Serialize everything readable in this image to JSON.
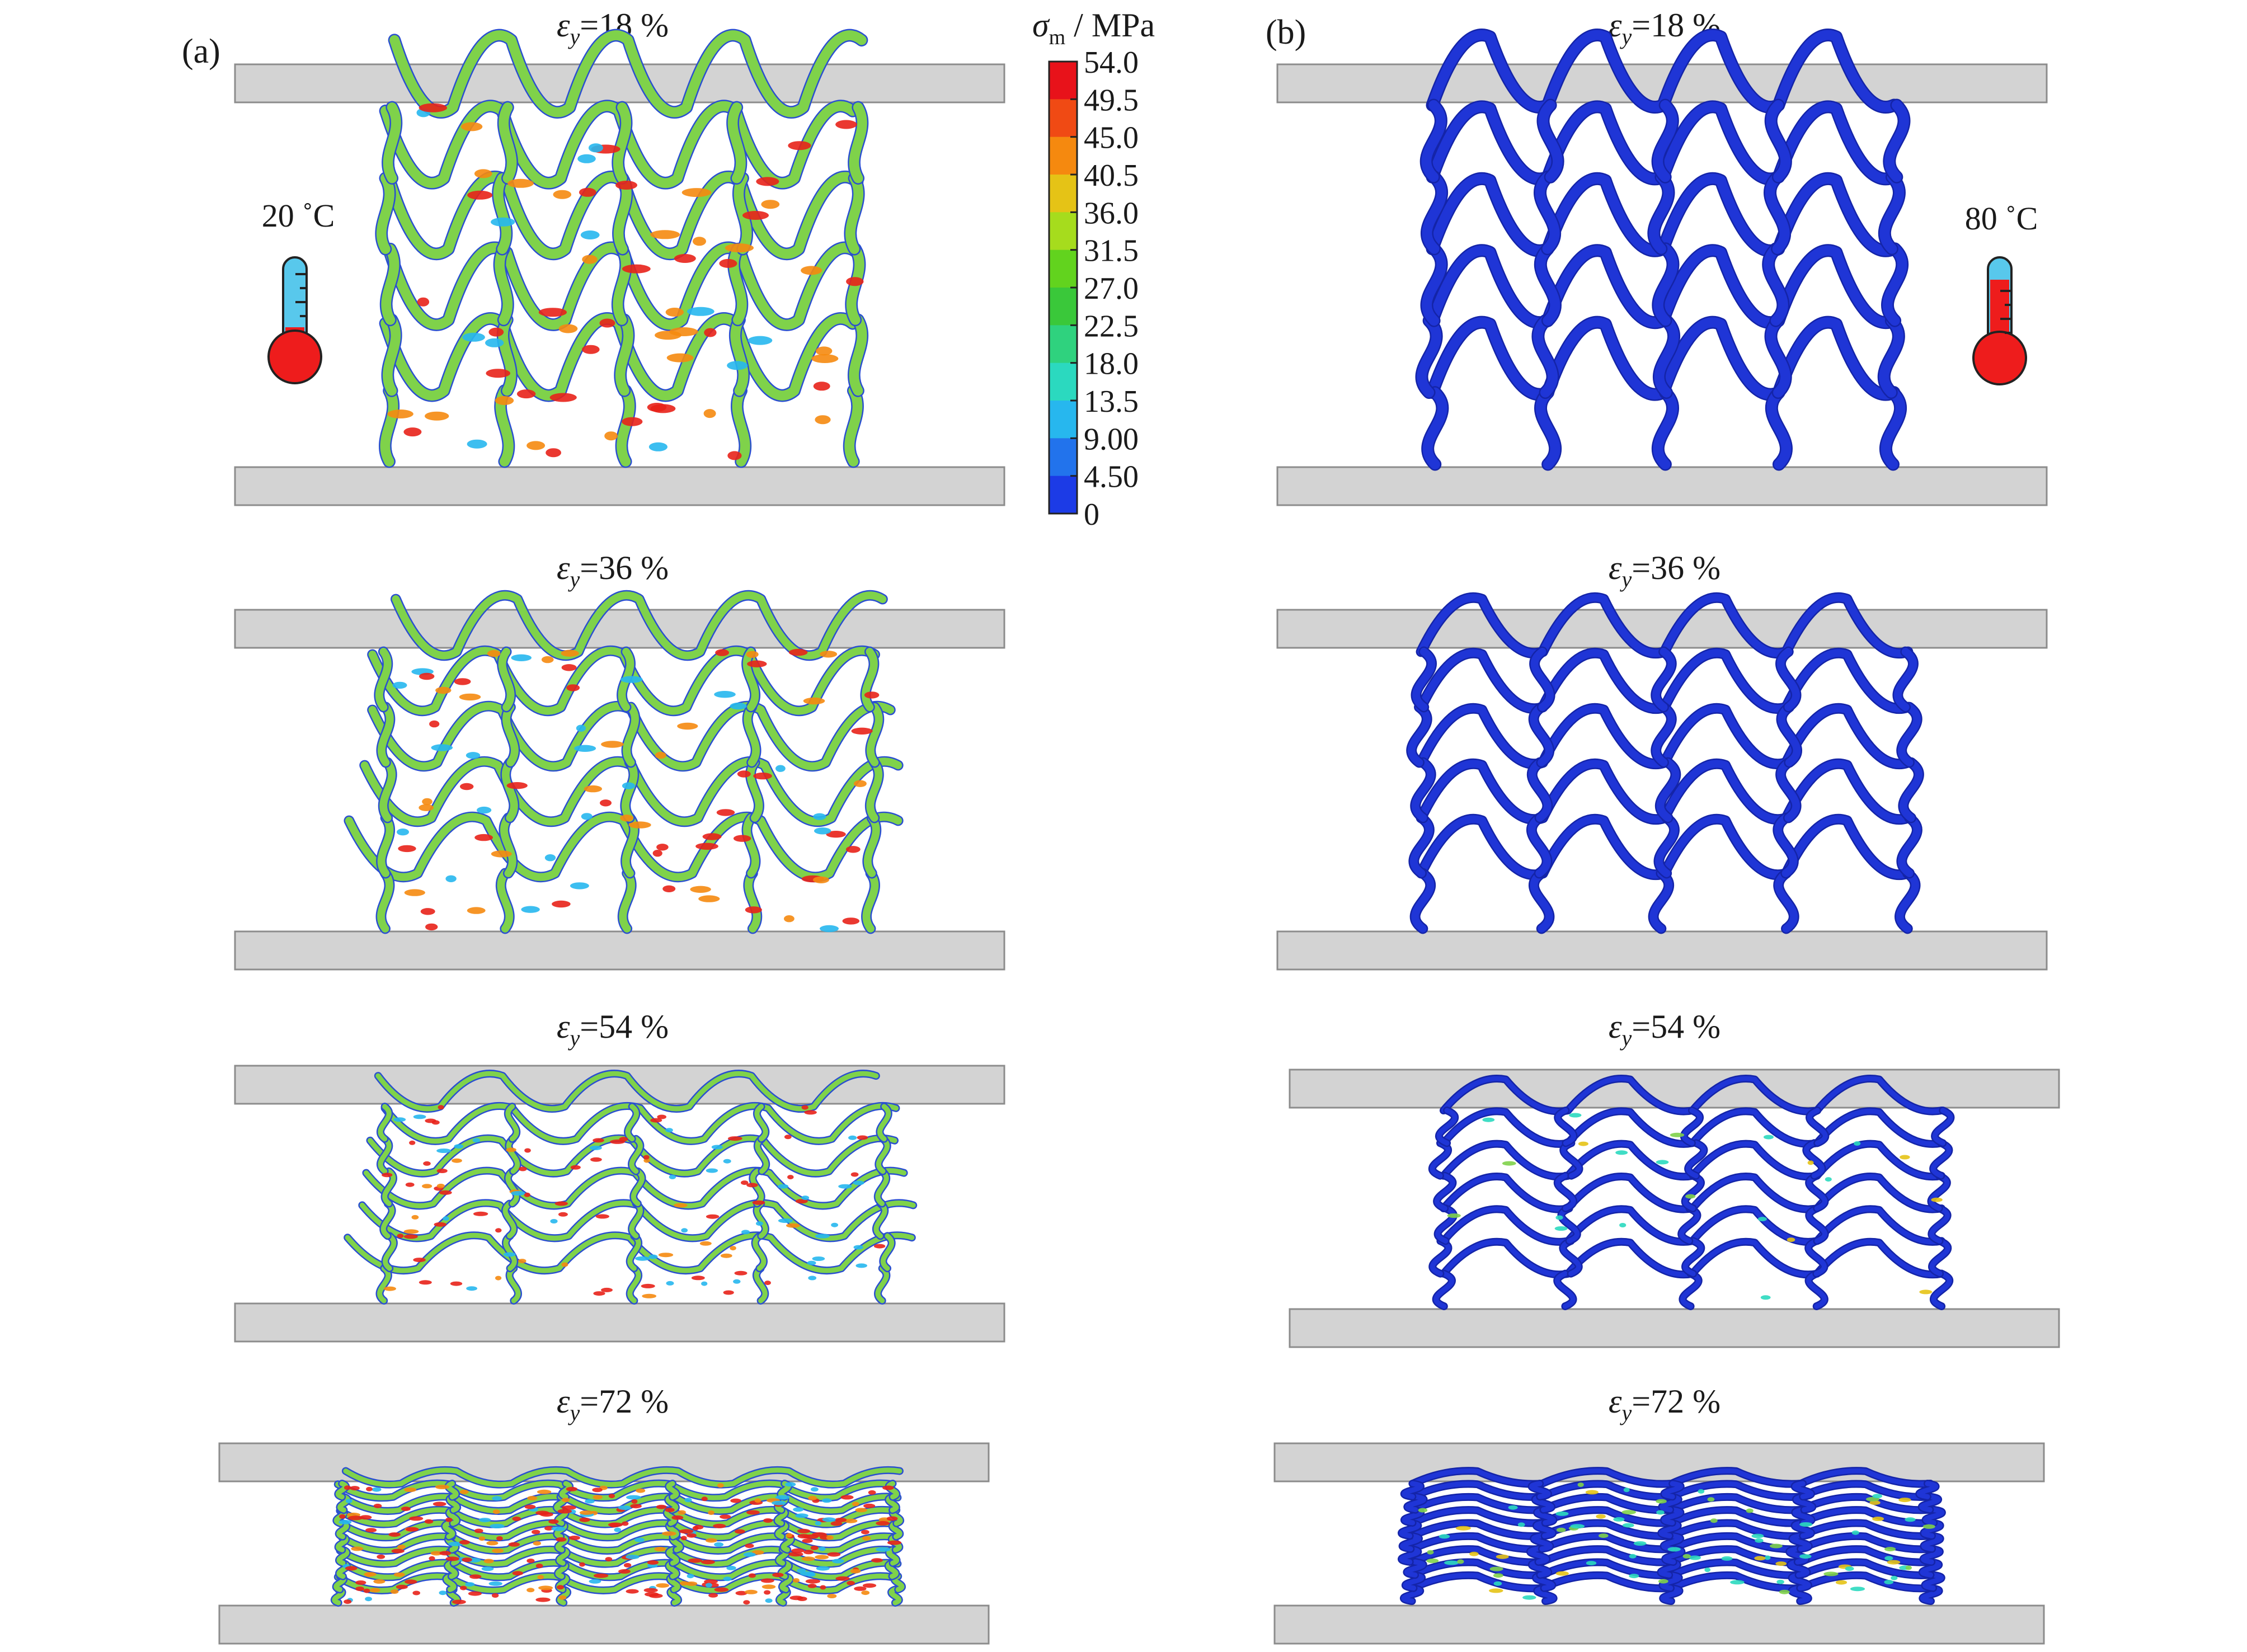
{
  "panels": [
    {
      "label": "(a)",
      "temperature": "20 ˚C",
      "thermometer": "low",
      "palette": "hot",
      "stages": [
        {
          "eps_symbol": "ε",
          "eps_sub": "y",
          "value": "=18 %"
        },
        {
          "eps_symbol": "ε",
          "eps_sub": "y",
          "value": "=36 %"
        },
        {
          "eps_symbol": "ε",
          "eps_sub": "y",
          "value": "=54 %"
        },
        {
          "eps_symbol": "ε",
          "eps_sub": "y",
          "value": "=72 %"
        }
      ]
    },
    {
      "label": "(b)",
      "temperature": "80 ˚C",
      "thermometer": "high",
      "palette": "cold",
      "stages": [
        {
          "eps_symbol": "ε",
          "eps_sub": "y",
          "value": "=18 %"
        },
        {
          "eps_symbol": "ε",
          "eps_sub": "y",
          "value": "=36 %"
        },
        {
          "eps_symbol": "ε",
          "eps_sub": "y",
          "value": "=54 %"
        },
        {
          "eps_symbol": "ε",
          "eps_sub": "y",
          "value": "=72 %"
        }
      ]
    }
  ],
  "colorbar": {
    "symbol": "σ",
    "subscript": "m",
    "unit": " / MPa",
    "ticks": [
      "54.0",
      "49.5",
      "45.0",
      "40.5",
      "36.0",
      "31.5",
      "27.0",
      "22.5",
      "18.0",
      "13.5",
      "9.00",
      "4.50",
      "0"
    ],
    "colors": [
      "#e8121a",
      "#f04a14",
      "#f5890f",
      "#e5c316",
      "#a6dc1d",
      "#62d31e",
      "#3ac83a",
      "#2fd27e",
      "#2bd9bf",
      "#27b7ee",
      "#2273ec",
      "#1c3be6"
    ]
  },
  "colors": {
    "plate_fill": "#d3d3d3",
    "plate_stroke": "#8c8c8c",
    "strut_blue": "#1f35d6",
    "strut_green": "#7fd24a",
    "hot_spot": "#e8221a",
    "thermo_cold": "#58c8ec",
    "thermo_hot": "#ee1c1c"
  }
}
